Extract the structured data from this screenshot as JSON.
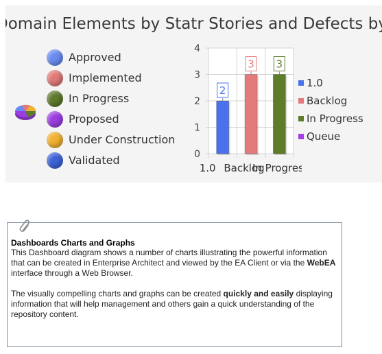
{
  "title": "Domain Elements by Statr Stories and Defects by Phase",
  "colors": {
    "panel_bg": "#f4f4f4",
    "note_border": "#7f8fa3",
    "approved": "#6a8cf0",
    "implemented": "#e07a78",
    "in_progress": "#5e7a2c",
    "proposed": "#9b3de0",
    "under_construction": "#f0b030",
    "validated": "#3d62d8"
  },
  "pie_legend": {
    "items": [
      {
        "label": "Approved",
        "color": "#6a8cf0"
      },
      {
        "label": "Implemented",
        "color": "#e07a78"
      },
      {
        "label": "In Progress",
        "color": "#5e7a2c"
      },
      {
        "label": "Proposed",
        "color": "#9b3de0"
      },
      {
        "label": "Under Construction",
        "color": "#f0b030"
      },
      {
        "label": "Validated",
        "color": "#3d62d8"
      }
    ]
  },
  "chart_data": {
    "type": "bar",
    "categories": [
      "1.0",
      "Backlog",
      "In Progress"
    ],
    "series": [
      {
        "name": "1.0",
        "color": "#4a72ec",
        "values": [
          2,
          null,
          null
        ]
      },
      {
        "name": "Backlog",
        "color": "#e47b7b",
        "values": [
          null,
          3,
          null
        ]
      },
      {
        "name": "In Progress",
        "color": "#5d7d2a",
        "values": [
          null,
          null,
          3
        ]
      },
      {
        "name": "Queue",
        "color": "#a53ee3",
        "values": [
          null,
          null,
          null
        ]
      }
    ],
    "data_labels": [
      "2",
      "3",
      "3"
    ],
    "yticks": [
      "0",
      "1",
      "2",
      "3",
      "4"
    ],
    "ylim": [
      0,
      4
    ],
    "grid": true,
    "legend": "right"
  },
  "note": {
    "title": "Dashboards Charts and Graphs",
    "p1_a": "This Dashboard diagram shows a number of charts illustrating the powerful information that can be created in Enterprise Architect and viewed by the EA Client or via the ",
    "p1_b": "WebEA",
    "p1_c": " interface through a Web Browser.",
    "p2_a": "The visually compelling charts and graphs can be created ",
    "p2_b": "quickly and easily",
    "p2_c": " displaying information that will help management and others gain a quick understanding of the repository content."
  }
}
